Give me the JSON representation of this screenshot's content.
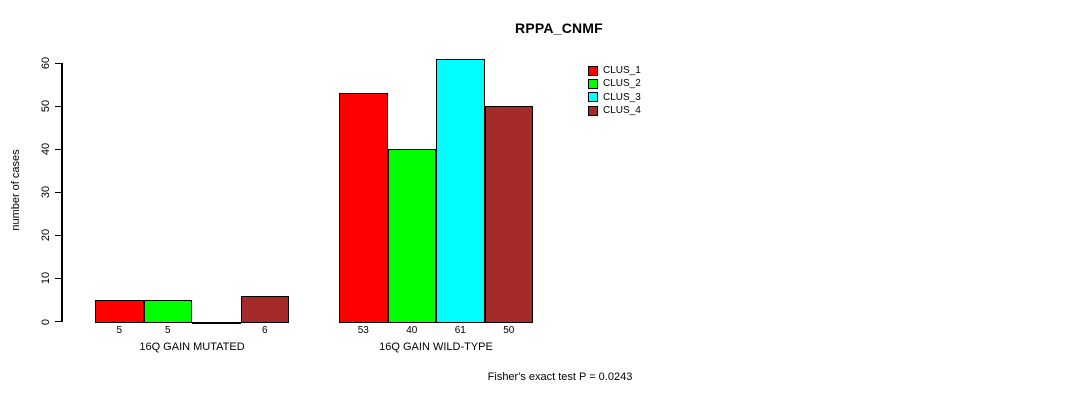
{
  "chart_data": {
    "type": "bar",
    "title": "RPPA_CNMF",
    "xlabel": "",
    "ylabel": "number of cases",
    "ylim": [
      0,
      60
    ],
    "yticks": [
      0,
      10,
      20,
      30,
      40,
      50,
      60
    ],
    "categories": [
      "16Q GAIN MUTATED",
      "16Q GAIN WILD-TYPE"
    ],
    "series": [
      {
        "name": "CLUS_1",
        "color": "#FF0000",
        "values": [
          5,
          53
        ]
      },
      {
        "name": "CLUS_2",
        "color": "#00FF00",
        "values": [
          5,
          40
        ]
      },
      {
        "name": "CLUS_3",
        "color": "#00FFFF",
        "values": [
          0,
          61
        ]
      },
      {
        "name": "CLUS_4",
        "color": "#A52A2A",
        "values": [
          6,
          50
        ]
      }
    ],
    "bar_value_labels": [
      [
        "5",
        "5",
        "",
        "6"
      ],
      [
        "53",
        "40",
        "61",
        "50"
      ]
    ],
    "legend_position": "top-right",
    "grid": false,
    "annotation": "Fisher's exact test P = 0.0243"
  }
}
